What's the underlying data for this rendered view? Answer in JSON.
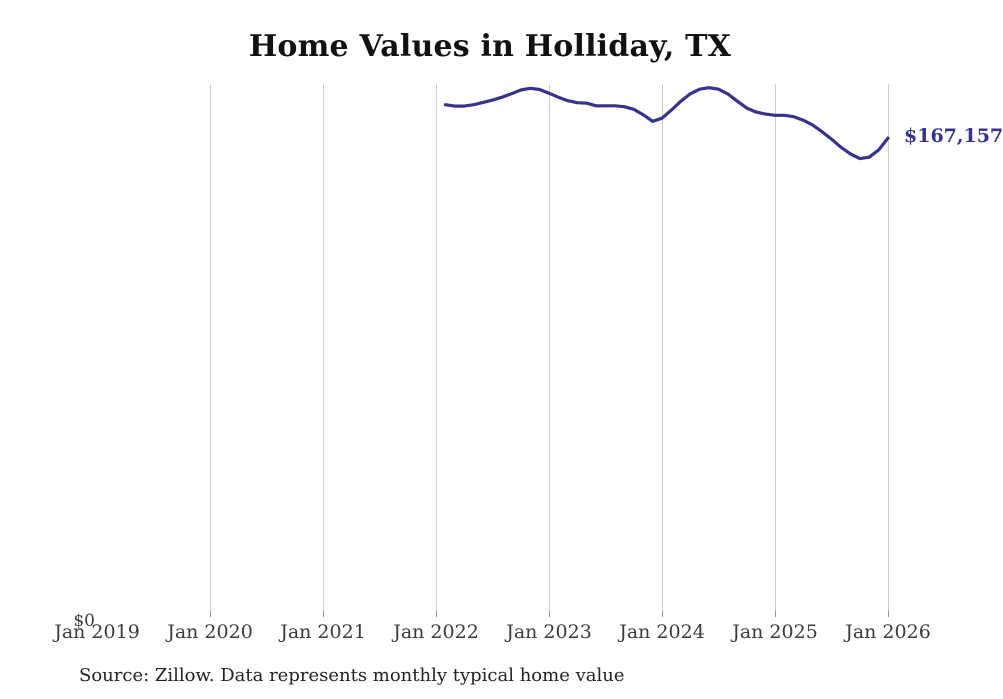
{
  "title": "Home Values in Holliday, TX",
  "source_note": "Source: Zillow. Data represents monthly typical home value",
  "y_axis": {
    "zero_label": "$0"
  },
  "colors": {
    "line": "#37328c",
    "end_label": "#37328c",
    "gridline": "#cccccc",
    "tick": "#909090",
    "axis_text": "#3b3b3b",
    "title_text": "#111111",
    "source_text": "#222222"
  },
  "chart_data": {
    "type": "line",
    "title": "Home Values in Holliday, TX",
    "xlabel": "",
    "ylabel": "",
    "series_name": "Monthly typical home value",
    "x_ticks": [
      "Jan 2019",
      "Jan 2020",
      "Jan 2021",
      "Jan 2022",
      "Jan 2023",
      "Jan 2024",
      "Jan 2025",
      "Jan 2026"
    ],
    "ylim": [
      0,
      186000
    ],
    "grid": "vertical",
    "legend": "none",
    "last_value_label": "$167,157",
    "last_value": 167157,
    "dates": [
      "Feb 2022",
      "Mar 2022",
      "Apr 2022",
      "May 2022",
      "Jun 2022",
      "Jul 2022",
      "Aug 2022",
      "Sep 2022",
      "Oct 2022",
      "Nov 2022",
      "Dec 2022",
      "Jan 2023",
      "Feb 2023",
      "Mar 2023",
      "Apr 2023",
      "May 2023",
      "Jun 2023",
      "Jul 2023",
      "Aug 2023",
      "Sep 2023",
      "Oct 2023",
      "Nov 2023",
      "Dec 2023",
      "Jan 2024",
      "Feb 2024",
      "Mar 2024",
      "Apr 2024",
      "May 2024",
      "Jun 2024",
      "Jul 2024",
      "Aug 2024",
      "Sep 2024",
      "Oct 2024",
      "Nov 2024",
      "Dec 2024",
      "Jan 2025",
      "Feb 2025",
      "Mar 2025",
      "Apr 2025",
      "May 2025",
      "Jun 2025",
      "Jul 2025",
      "Aug 2025",
      "Sep 2025",
      "Oct 2025",
      "Nov 2025",
      "Dec 2025",
      "Jan 2026"
    ],
    "values": [
      178800,
      178300,
      178300,
      178800,
      179600,
      180400,
      181400,
      182600,
      183900,
      184500,
      184100,
      182800,
      181400,
      180200,
      179500,
      179300,
      178400,
      178400,
      178400,
      178100,
      177200,
      175300,
      173000,
      174100,
      176900,
      180000,
      182600,
      184200,
      184700,
      184200,
      182500,
      180000,
      177600,
      176200,
      175500,
      175100,
      175100,
      174600,
      173400,
      171700,
      169400,
      166800,
      164000,
      161700,
      160000,
      160500,
      163000,
      167157
    ]
  }
}
